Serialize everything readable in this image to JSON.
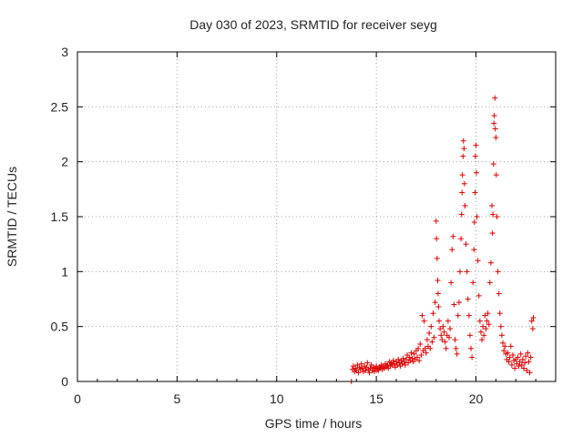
{
  "chart_data": {
    "type": "scatter",
    "title": "Day 030 of 2023, SRMTID for receiver seyg",
    "xlabel": "GPS time / hours",
    "ylabel": "SRMTID / TECUs",
    "xlim": [
      0,
      24
    ],
    "ylim": [
      0,
      3
    ],
    "xticks": [
      0,
      5,
      10,
      15,
      20
    ],
    "yticks": [
      0,
      0.5,
      1,
      1.5,
      2,
      2.5,
      3
    ],
    "xtick_labels": [
      "0",
      "5",
      "10",
      "15",
      "20"
    ],
    "ytick_labels": [
      "0",
      "0.5",
      "1",
      "1.5",
      "2",
      "2.5",
      "3"
    ],
    "grid": true,
    "marker": "+",
    "color": "#dd0000",
    "series": [
      {
        "name": "SRMTID",
        "points": [
          [
            13.75,
            0.0
          ],
          [
            13.8,
            0.11
          ],
          [
            13.85,
            0.14
          ],
          [
            13.9,
            0.09
          ],
          [
            13.95,
            0.12
          ],
          [
            14.0,
            0.1
          ],
          [
            14.05,
            0.15
          ],
          [
            14.1,
            0.08
          ],
          [
            14.15,
            0.13
          ],
          [
            14.2,
            0.11
          ],
          [
            14.25,
            0.16
          ],
          [
            14.3,
            0.12
          ],
          [
            14.35,
            0.09
          ],
          [
            14.4,
            0.14
          ],
          [
            14.45,
            0.1
          ],
          [
            14.5,
            0.13
          ],
          [
            14.55,
            0.17
          ],
          [
            14.6,
            0.11
          ],
          [
            14.65,
            0.08
          ],
          [
            14.7,
            0.12
          ],
          [
            14.75,
            0.15
          ],
          [
            14.8,
            0.1
          ],
          [
            14.85,
            0.13
          ],
          [
            14.9,
            0.09
          ],
          [
            14.95,
            0.12
          ],
          [
            15.0,
            0.14
          ],
          [
            15.05,
            0.11
          ],
          [
            15.1,
            0.1
          ],
          [
            15.15,
            0.13
          ],
          [
            15.2,
            0.12
          ],
          [
            15.25,
            0.15
          ],
          [
            15.3,
            0.11
          ],
          [
            15.35,
            0.14
          ],
          [
            15.4,
            0.12
          ],
          [
            15.45,
            0.16
          ],
          [
            15.5,
            0.13
          ],
          [
            15.55,
            0.15
          ],
          [
            15.6,
            0.12
          ],
          [
            15.65,
            0.18
          ],
          [
            15.7,
            0.14
          ],
          [
            15.75,
            0.17
          ],
          [
            15.8,
            0.15
          ],
          [
            15.85,
            0.19
          ],
          [
            15.9,
            0.16
          ],
          [
            15.95,
            0.13
          ],
          [
            16.0,
            0.18
          ],
          [
            16.05,
            0.15
          ],
          [
            16.1,
            0.2
          ],
          [
            16.15,
            0.17
          ],
          [
            16.2,
            0.14
          ],
          [
            16.25,
            0.19
          ],
          [
            16.3,
            0.16
          ],
          [
            16.35,
            0.21
          ],
          [
            16.4,
            0.18
          ],
          [
            16.45,
            0.15
          ],
          [
            16.5,
            0.2
          ],
          [
            16.55,
            0.24
          ],
          [
            16.6,
            0.17
          ],
          [
            16.65,
            0.22
          ],
          [
            16.7,
            0.19
          ],
          [
            16.75,
            0.26
          ],
          [
            16.8,
            0.21
          ],
          [
            16.85,
            0.18
          ],
          [
            16.9,
            0.25
          ],
          [
            16.95,
            0.2
          ],
          [
            17.0,
            0.28
          ],
          [
            17.05,
            0.22
          ],
          [
            17.1,
            0.3
          ],
          [
            17.15,
            0.19
          ],
          [
            17.2,
            0.34
          ],
          [
            17.25,
            0.24
          ],
          [
            17.3,
            0.6
          ],
          [
            17.35,
            0.28
          ],
          [
            17.4,
            0.55
          ],
          [
            17.45,
            0.3
          ],
          [
            17.5,
            0.26
          ],
          [
            17.55,
            0.38
          ],
          [
            17.6,
            0.32
          ],
          [
            17.65,
            0.44
          ],
          [
            17.7,
            0.3
          ],
          [
            17.75,
            0.5
          ],
          [
            17.8,
            0.36
          ],
          [
            17.85,
            0.62
          ],
          [
            17.9,
            0.4
          ],
          [
            17.95,
            0.72
          ],
          [
            18.0,
            1.46
          ],
          [
            18.02,
            1.3
          ],
          [
            18.05,
            1.12
          ],
          [
            18.08,
            0.92
          ],
          [
            18.1,
            0.8
          ],
          [
            18.12,
            0.68
          ],
          [
            18.15,
            0.55
          ],
          [
            18.2,
            0.48
          ],
          [
            18.25,
            0.42
          ],
          [
            18.3,
            0.38
          ],
          [
            18.35,
            0.5
          ],
          [
            18.4,
            0.45
          ],
          [
            18.45,
            0.36
          ],
          [
            18.5,
            0.3
          ],
          [
            18.55,
            0.42
          ],
          [
            18.6,
            0.55
          ],
          [
            18.65,
            0.4
          ],
          [
            18.7,
            0.48
          ],
          [
            18.75,
            0.9
          ],
          [
            18.8,
            1.2
          ],
          [
            18.85,
            1.32
          ],
          [
            18.9,
            0.7
          ],
          [
            18.95,
            0.38
          ],
          [
            19.0,
            0.3
          ],
          [
            19.05,
            0.25
          ],
          [
            19.1,
            0.6
          ],
          [
            19.15,
            0.72
          ],
          [
            19.2,
            1.0
          ],
          [
            19.25,
            1.3
          ],
          [
            19.28,
            1.52
          ],
          [
            19.3,
            1.72
          ],
          [
            19.32,
            1.88
          ],
          [
            19.35,
            2.05
          ],
          [
            19.37,
            2.19
          ],
          [
            19.4,
            2.12
          ],
          [
            19.42,
            1.8
          ],
          [
            19.45,
            1.6
          ],
          [
            19.5,
            1.25
          ],
          [
            19.55,
            1.0
          ],
          [
            19.6,
            0.75
          ],
          [
            19.65,
            0.6
          ],
          [
            19.7,
            0.42
          ],
          [
            19.75,
            0.3
          ],
          [
            19.8,
            0.22
          ],
          [
            19.85,
            0.9
          ],
          [
            19.9,
            1.2
          ],
          [
            19.92,
            1.45
          ],
          [
            19.95,
            1.72
          ],
          [
            19.97,
            2.05
          ],
          [
            20.0,
            2.15
          ],
          [
            20.02,
            1.9
          ],
          [
            20.05,
            1.5
          ],
          [
            20.1,
            1.1
          ],
          [
            20.15,
            0.78
          ],
          [
            20.2,
            0.55
          ],
          [
            20.25,
            0.45
          ],
          [
            20.3,
            0.38
          ],
          [
            20.35,
            0.5
          ],
          [
            20.4,
            0.42
          ],
          [
            20.45,
            0.6
          ],
          [
            20.5,
            0.48
          ],
          [
            20.55,
            0.55
          ],
          [
            20.6,
            0.62
          ],
          [
            20.65,
            0.52
          ],
          [
            20.7,
            0.9
          ],
          [
            20.75,
            1.08
          ],
          [
            20.8,
            1.6
          ],
          [
            20.83,
            1.35
          ],
          [
            20.85,
            1.52
          ],
          [
            20.88,
            1.98
          ],
          [
            20.9,
            2.35
          ],
          [
            20.92,
            2.42
          ],
          [
            20.95,
            2.58
          ],
          [
            20.97,
            2.3
          ],
          [
            21.0,
            2.22
          ],
          [
            21.02,
            1.88
          ],
          [
            21.05,
            1.5
          ],
          [
            21.1,
            1.0
          ],
          [
            21.15,
            0.8
          ],
          [
            21.2,
            0.62
          ],
          [
            21.25,
            0.5
          ],
          [
            21.3,
            0.42
          ],
          [
            21.35,
            0.35
          ],
          [
            21.4,
            0.28
          ],
          [
            21.45,
            0.32
          ],
          [
            21.5,
            0.25
          ],
          [
            21.55,
            0.2
          ],
          [
            21.6,
            0.26
          ],
          [
            21.65,
            0.18
          ],
          [
            21.7,
            0.22
          ],
          [
            21.75,
            0.32
          ],
          [
            21.8,
            0.15
          ],
          [
            21.85,
            0.24
          ],
          [
            21.9,
            0.19
          ],
          [
            21.95,
            0.12
          ],
          [
            22.0,
            0.2
          ],
          [
            22.05,
            0.16
          ],
          [
            22.1,
            0.22
          ],
          [
            22.15,
            0.14
          ],
          [
            22.2,
            0.18
          ],
          [
            22.25,
            0.25
          ],
          [
            22.3,
            0.15
          ],
          [
            22.35,
            0.2
          ],
          [
            22.4,
            0.12
          ],
          [
            22.45,
            0.17
          ],
          [
            22.5,
            0.23
          ],
          [
            22.55,
            0.1
          ],
          [
            22.6,
            0.26
          ],
          [
            22.65,
            0.18
          ],
          [
            22.7,
            0.08
          ],
          [
            22.75,
            0.22
          ],
          [
            22.8,
            0.55
          ],
          [
            22.85,
            0.48
          ],
          [
            22.88,
            0.58
          ]
        ]
      }
    ]
  }
}
